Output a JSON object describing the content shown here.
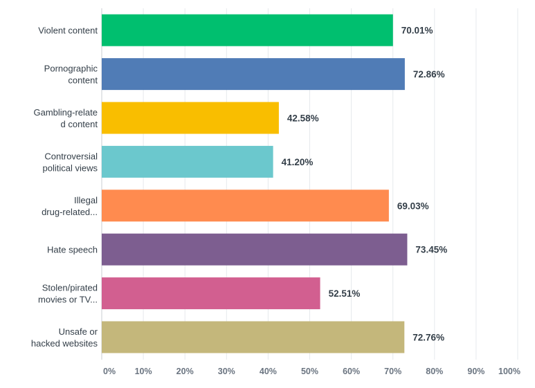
{
  "chart_data": {
    "type": "bar",
    "orientation": "horizontal",
    "title": "",
    "xlabel": "",
    "ylabel": "",
    "xlim": [
      0,
      100
    ],
    "grid": true,
    "legend": "none",
    "categories": [
      [
        "Violent content"
      ],
      [
        "Pornographic",
        "content"
      ],
      [
        "Gambling-relate",
        "d content"
      ],
      [
        "Controversial",
        "political views"
      ],
      [
        "Illegal",
        "drug-related..."
      ],
      [
        "Hate speech"
      ],
      [
        "Stolen/pirated",
        "movies or TV..."
      ],
      [
        "Unsafe or",
        "hacked websites"
      ]
    ],
    "values": [
      70.01,
      72.86,
      42.58,
      41.2,
      69.03,
      73.45,
      52.51,
      72.76
    ],
    "value_labels": [
      "70.01%",
      "72.86%",
      "42.58%",
      "41.20%",
      "69.03%",
      "73.45%",
      "52.51%",
      "72.76%"
    ],
    "colors": [
      "#00bf6f",
      "#507cb6",
      "#f9be00",
      "#6bc8cd",
      "#ff8b4f",
      "#7d5e90",
      "#d25f90",
      "#c4b77b"
    ],
    "x_ticks": [
      0,
      10,
      20,
      30,
      40,
      50,
      60,
      70,
      80,
      90,
      100
    ],
    "x_tick_labels": [
      "0%",
      "10%",
      "20%",
      "30%",
      "40%",
      "50%",
      "60%",
      "70%",
      "80%",
      "90%",
      "100%"
    ]
  }
}
